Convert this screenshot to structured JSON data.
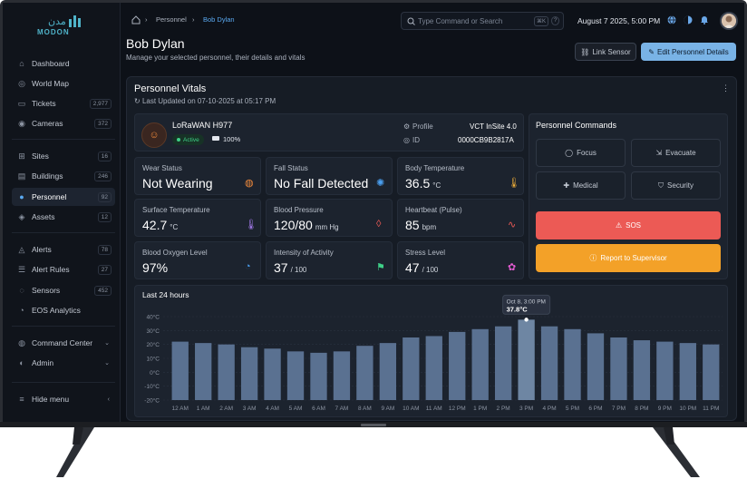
{
  "brand": {
    "name": "MODON",
    "arabic": "مدن"
  },
  "sidebar": {
    "group1": [
      {
        "label": "Dashboard",
        "icon": "dashboard-icon"
      },
      {
        "label": "World Map",
        "icon": "globe-icon"
      },
      {
        "label": "Tickets",
        "icon": "ticket-icon",
        "count": "2,977"
      },
      {
        "label": "Cameras",
        "icon": "camera-icon",
        "count": "372"
      }
    ],
    "group2": [
      {
        "label": "Sites",
        "icon": "sites-icon",
        "count": "16"
      },
      {
        "label": "Buildings",
        "icon": "building-icon",
        "count": "246"
      },
      {
        "label": "Personnel",
        "icon": "users-icon",
        "count": "92",
        "active": true
      },
      {
        "label": "Assets",
        "icon": "asset-icon",
        "count": "12"
      }
    ],
    "group3": [
      {
        "label": "Alerts",
        "icon": "bell-icon",
        "count": "78"
      },
      {
        "label": "Alert Rules",
        "icon": "rules-icon",
        "count": "27"
      },
      {
        "label": "Sensors",
        "icon": "sensor-icon",
        "count": "452"
      },
      {
        "label": "EOS Analytics",
        "icon": "analytics-icon"
      }
    ],
    "group4": [
      {
        "label": "Command Center",
        "icon": "command-icon"
      },
      {
        "label": "Admin",
        "icon": "admin-icon"
      }
    ],
    "hide_menu": "Hide menu"
  },
  "topbar": {
    "breadcrumb": [
      "Personnel",
      "Bob Dylan"
    ],
    "search_placeholder": "Type Command or Search",
    "kbd": "⌘K",
    "kbd2": "?",
    "datetime": "August 7 2025, 5:00 PM"
  },
  "header": {
    "title": "Bob Dylan",
    "subtitle": "Manage your selected personnel, their details and vitals",
    "link_sensor": "Link Sensor",
    "edit": "Edit Personnel Details"
  },
  "vitals_card": {
    "title": "Personnel Vitals",
    "updated": "Last Updated on 07-10-2025 at 05:17 PM"
  },
  "device": {
    "name": "LoRaWAN H977",
    "status": "Active",
    "battery": "100%",
    "profile_label": "Profile",
    "profile_value": "VCT InSite 4.0",
    "id_label": "ID",
    "id_value": "0000CB9B2817A"
  },
  "vitals": [
    {
      "label": "Wear Status",
      "value": "Not Wearing",
      "unit": "",
      "icon": "wearable-icon",
      "color": "#f08a3c"
    },
    {
      "label": "Fall Status",
      "value": "No Fall Detected",
      "unit": "",
      "icon": "fall-icon",
      "color": "#4a9ff0"
    },
    {
      "label": "Body Temperature",
      "value": "36.5",
      "unit": "°C",
      "icon": "thermometer-icon",
      "color": "#f3b13a"
    },
    {
      "label": "Surface Temperature",
      "value": "42.7",
      "unit": "°C",
      "icon": "thermometer-icon",
      "color": "#a77cf0"
    },
    {
      "label": "Blood Pressure",
      "value": "120/80",
      "unit": "mm Hg",
      "icon": "drop-icon",
      "color": "#ec5a55"
    },
    {
      "label": "Heartbeat (Pulse)",
      "value": "85",
      "unit": "bpm",
      "icon": "pulse-icon",
      "color": "#ec5a55"
    },
    {
      "label": "Blood Oxygen Level",
      "value": "97%",
      "unit": "",
      "icon": "oxygen-icon",
      "color": "#4a9ff0"
    },
    {
      "label": "Intensity of Activity",
      "value": "37",
      "unit": "/ 100",
      "icon": "running-icon",
      "color": "#3fcf87"
    },
    {
      "label": "Stress Level",
      "value": "47",
      "unit": "/ 100",
      "icon": "stress-icon",
      "color": "#e35bd1"
    }
  ],
  "commands": {
    "title": "Personnel Commands",
    "buttons": [
      "Focus",
      "Evacuate",
      "Medical",
      "Security"
    ],
    "sos": "SOS",
    "report": "Report to Supervisor"
  },
  "chart_data": {
    "type": "bar",
    "title": "Last 24 hours",
    "categories": [
      "12 AM",
      "1 AM",
      "2 AM",
      "3 AM",
      "4 AM",
      "5 AM",
      "6 AM",
      "7 AM",
      "8 AM",
      "9 AM",
      "10 AM",
      "11 AM",
      "12 PM",
      "1 PM",
      "2 PM",
      "3 PM",
      "4 PM",
      "5 PM",
      "6 PM",
      "7 PM",
      "8 PM",
      "9 PM",
      "10 PM",
      "11 PM"
    ],
    "values": [
      22,
      21,
      20,
      18,
      17,
      15,
      14,
      15,
      19,
      21,
      25,
      26,
      29,
      31,
      33,
      37.8,
      33,
      31,
      28,
      25,
      23,
      22,
      21,
      20
    ],
    "ylim": [
      -20,
      40
    ],
    "yticks": [
      "-20°C",
      "-10°C",
      "0°C",
      "10°C",
      "20°C",
      "30°C",
      "40°C"
    ],
    "tooltip": {
      "date": "Oct 8, 3:00 PM",
      "value": "37.8°C"
    },
    "grid": true
  }
}
